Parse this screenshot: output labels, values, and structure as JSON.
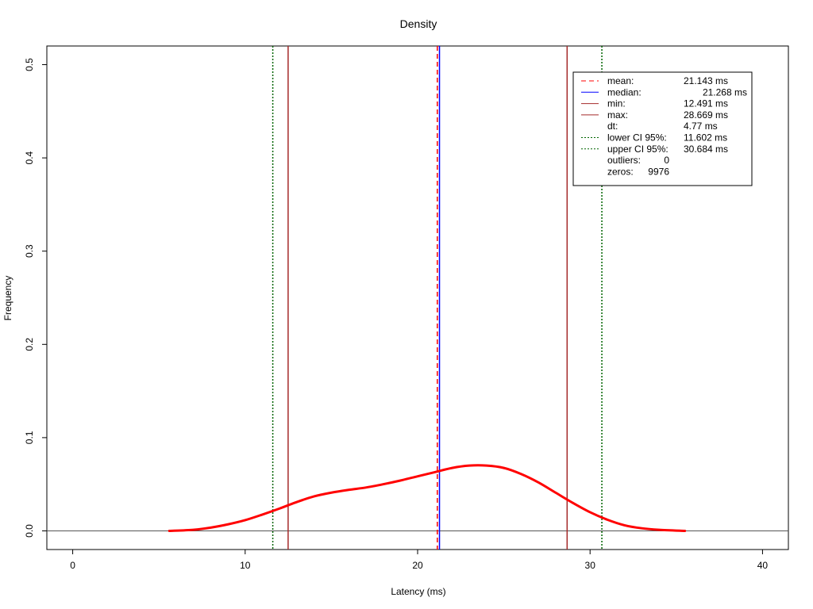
{
  "chart_data": {
    "type": "line",
    "title": "Density",
    "xlabel": "Latency (ms)",
    "ylabel": "Frequency",
    "xlim": [
      -1.5,
      41.5
    ],
    "ylim": [
      -0.02,
      0.52
    ],
    "xticks": [
      0,
      10,
      20,
      30,
      40
    ],
    "yticks": [
      0.0,
      0.1,
      0.2,
      0.3,
      0.4,
      0.5
    ],
    "grid": false,
    "legend_position": "top-right",
    "series": [
      {
        "name": "density",
        "color": "#ff0000",
        "points": [
          [
            5.6,
            0.0
          ],
          [
            7.0,
            0.0012
          ],
          [
            8.0,
            0.0035
          ],
          [
            9.0,
            0.007
          ],
          [
            10.0,
            0.0115
          ],
          [
            11.0,
            0.0175
          ],
          [
            12.0,
            0.024
          ],
          [
            13.0,
            0.031
          ],
          [
            14.0,
            0.037
          ],
          [
            15.0,
            0.041
          ],
          [
            16.0,
            0.044
          ],
          [
            17.0,
            0.0465
          ],
          [
            18.0,
            0.05
          ],
          [
            19.0,
            0.054
          ],
          [
            20.0,
            0.0585
          ],
          [
            21.0,
            0.063
          ],
          [
            22.0,
            0.0675
          ],
          [
            23.0,
            0.07
          ],
          [
            24.0,
            0.07
          ],
          [
            25.0,
            0.0675
          ],
          [
            26.0,
            0.061
          ],
          [
            27.0,
            0.052
          ],
          [
            28.0,
            0.041
          ],
          [
            29.0,
            0.03
          ],
          [
            30.0,
            0.02
          ],
          [
            31.0,
            0.012
          ],
          [
            32.0,
            0.006
          ],
          [
            33.0,
            0.0028
          ],
          [
            34.0,
            0.0012
          ],
          [
            35.5,
            0.0
          ]
        ]
      }
    ],
    "reference_lines": [
      {
        "label": "mean:",
        "value": 21.143,
        "display": "21.143 ms",
        "color": "#ff0000",
        "style": "dashed"
      },
      {
        "label": "median:",
        "value": 21.268,
        "display": "21.268 ms",
        "color": "#0000ff",
        "style": "solid"
      },
      {
        "label": "min:",
        "value": 12.491,
        "display": "12.491 ms",
        "color": "#a52a2a",
        "style": "solid"
      },
      {
        "label": "max:",
        "value": 28.669,
        "display": "28.669 ms",
        "color": "#a52a2a",
        "style": "solid"
      },
      {
        "label": "dt:",
        "value": null,
        "display": "4.77 ms",
        "color": null,
        "style": "none"
      },
      {
        "label": "lower CI 95%:",
        "value": 11.602,
        "display": "11.602 ms",
        "color": "#006400",
        "style": "dotted"
      },
      {
        "label": "upper CI 95%:",
        "value": 30.684,
        "display": "30.684 ms",
        "color": "#006400",
        "style": "dotted"
      }
    ],
    "extra_stats": [
      {
        "label": "outliers:",
        "display": "0"
      },
      {
        "label": "zeros:",
        "display": "9976"
      }
    ],
    "baseline": {
      "value": 0.0,
      "color": "#555555"
    }
  }
}
